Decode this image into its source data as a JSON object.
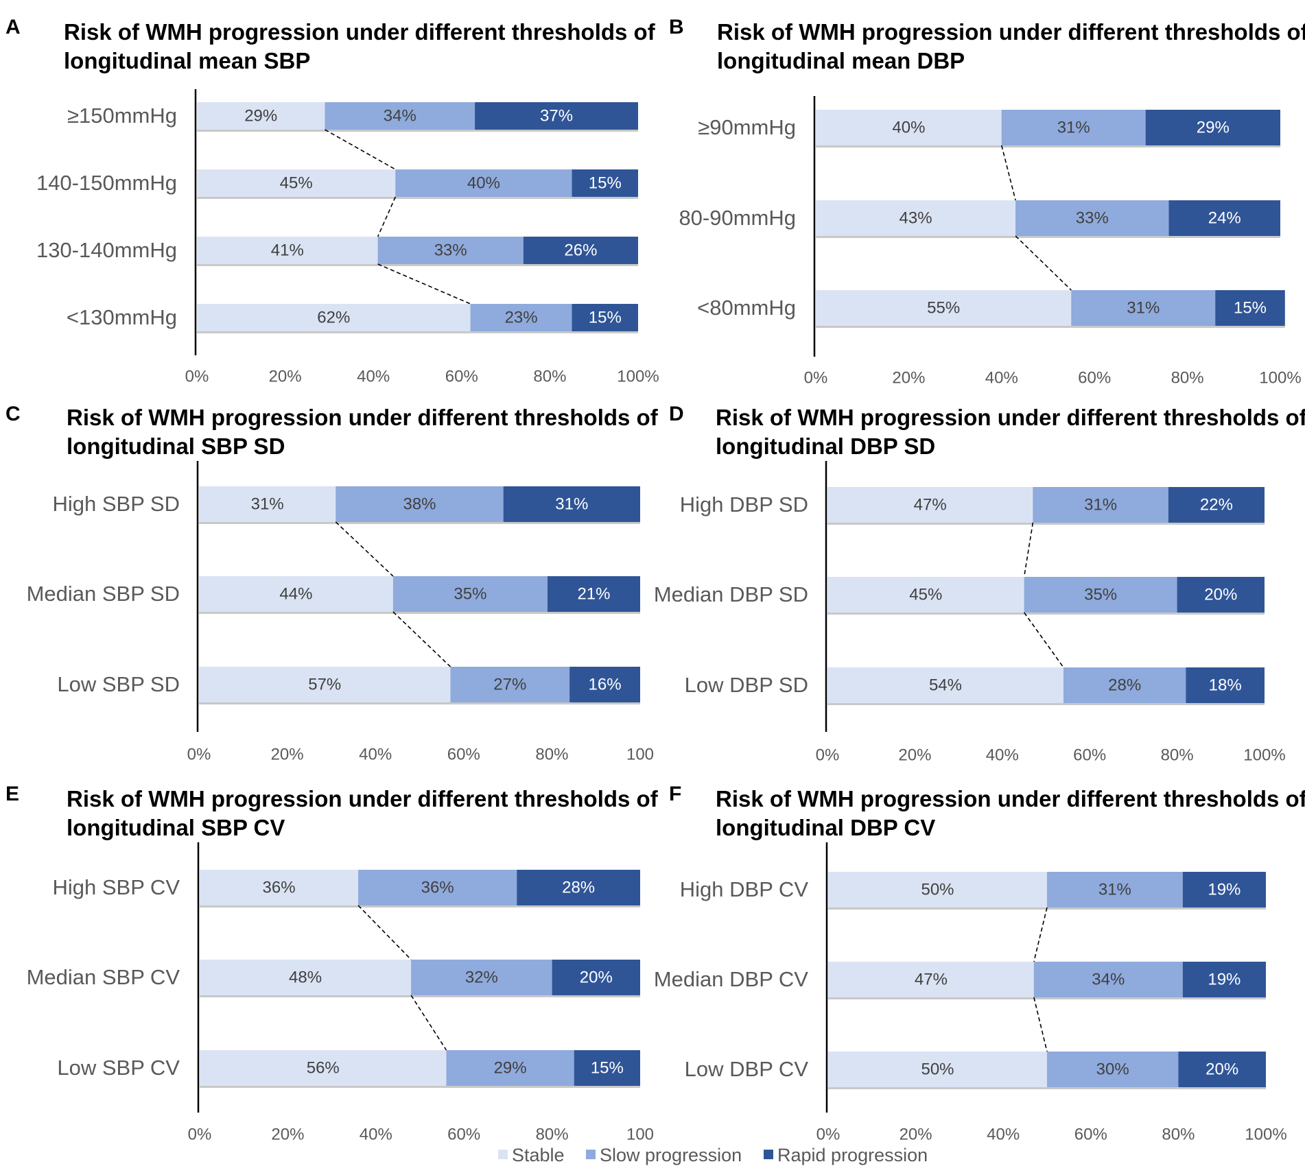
{
  "colors": {
    "stable": "#dae3f3",
    "slow": "#8faadc",
    "rapid": "#2f5597",
    "label_dark": "#404040",
    "label_light": "#ffffff"
  },
  "legend": [
    "Stable",
    "Slow progression",
    "Rapid progression"
  ],
  "chart_data": [
    {
      "panel": "A",
      "type": "bar",
      "orientation": "horizontal-stacked-100",
      "title": [
        "Risk of WMH progression under different thresholds of",
        "longitudinal mean SBP"
      ],
      "categories": [
        "≥150mmHg",
        "140-150mmHg",
        "130-140mmHg",
        "<130mmHg"
      ],
      "series": [
        {
          "name": "Stable",
          "values": [
            29,
            45,
            41,
            62
          ]
        },
        {
          "name": "Slow progression",
          "values": [
            34,
            40,
            33,
            23
          ]
        },
        {
          "name": "Rapid progression",
          "values": [
            37,
            15,
            26,
            15
          ]
        }
      ],
      "xticks": [
        "0%",
        "20%",
        "40%",
        "60%",
        "80%",
        "100%"
      ],
      "xlim": [
        0,
        100
      ]
    },
    {
      "panel": "B",
      "type": "bar",
      "orientation": "horizontal-stacked-100",
      "title": [
        "Risk of WMH progression under different thresholds of",
        "longitudinal mean DBP"
      ],
      "categories": [
        "≥90mmHg",
        "80-90mmHg",
        "<80mmHg"
      ],
      "series": [
        {
          "name": "Stable",
          "values": [
            40,
            43,
            55
          ]
        },
        {
          "name": "Slow progression",
          "values": [
            31,
            33,
            31
          ]
        },
        {
          "name": "Rapid progression",
          "values": [
            29,
            24,
            15
          ]
        }
      ],
      "xticks": [
        "0%",
        "20%",
        "40%",
        "60%",
        "80%",
        "100%"
      ],
      "xlim": [
        0,
        100
      ]
    },
    {
      "panel": "C",
      "type": "bar",
      "orientation": "horizontal-stacked-100",
      "title": [
        "Risk of WMH progression under different thresholds of",
        "longitudinal SBP SD"
      ],
      "categories": [
        "High SBP SD",
        "Median SBP SD",
        "Low SBP SD"
      ],
      "series": [
        {
          "name": "Stable",
          "values": [
            31,
            44,
            57
          ]
        },
        {
          "name": "Slow progression",
          "values": [
            38,
            35,
            27
          ]
        },
        {
          "name": "Rapid progression",
          "values": [
            31,
            21,
            16
          ]
        }
      ],
      "xticks": [
        "0%",
        "20%",
        "40%",
        "60%",
        "80%",
        "100"
      ],
      "xlim": [
        0,
        100
      ]
    },
    {
      "panel": "D",
      "type": "bar",
      "orientation": "horizontal-stacked-100",
      "title": [
        "Risk of WMH progression under different thresholds of",
        "longitudinal DBP SD"
      ],
      "categories": [
        "High DBP SD",
        "Median DBP SD",
        "Low DBP SD"
      ],
      "series": [
        {
          "name": "Stable",
          "values": [
            47,
            45,
            54
          ]
        },
        {
          "name": "Slow progression",
          "values": [
            31,
            35,
            28
          ]
        },
        {
          "name": "Rapid progression",
          "values": [
            22,
            20,
            18
          ]
        }
      ],
      "xticks": [
        "0%",
        "20%",
        "40%",
        "60%",
        "80%",
        "100%"
      ],
      "xlim": [
        0,
        100
      ]
    },
    {
      "panel": "E",
      "type": "bar",
      "orientation": "horizontal-stacked-100",
      "title": [
        "Risk of WMH progression under different thresholds of",
        "longitudinal SBP CV"
      ],
      "categories": [
        "High SBP CV",
        "Median SBP CV",
        "Low SBP CV"
      ],
      "series": [
        {
          "name": "Stable",
          "values": [
            36,
            48,
            56
          ]
        },
        {
          "name": "Slow progression",
          "values": [
            36,
            32,
            29
          ]
        },
        {
          "name": "Rapid progression",
          "values": [
            28,
            20,
            15
          ]
        }
      ],
      "xticks": [
        "0%",
        "20%",
        "40%",
        "60%",
        "80%",
        "100"
      ],
      "xlim": [
        0,
        100
      ]
    },
    {
      "panel": "F",
      "type": "bar",
      "orientation": "horizontal-stacked-100",
      "title": [
        "Risk of WMH progression under different thresholds of",
        "longitudinal DBP CV"
      ],
      "categories": [
        "High DBP CV",
        "Median DBP CV",
        "Low DBP CV"
      ],
      "series": [
        {
          "name": "Stable",
          "values": [
            50,
            47,
            50
          ]
        },
        {
          "name": "Slow progression",
          "values": [
            31,
            34,
            30
          ]
        },
        {
          "name": "Rapid progression",
          "values": [
            19,
            19,
            20
          ]
        }
      ],
      "xticks": [
        "0%",
        "20%",
        "40%",
        "60%",
        "80%",
        "100%"
      ],
      "xlim": [
        0,
        100
      ]
    }
  ]
}
